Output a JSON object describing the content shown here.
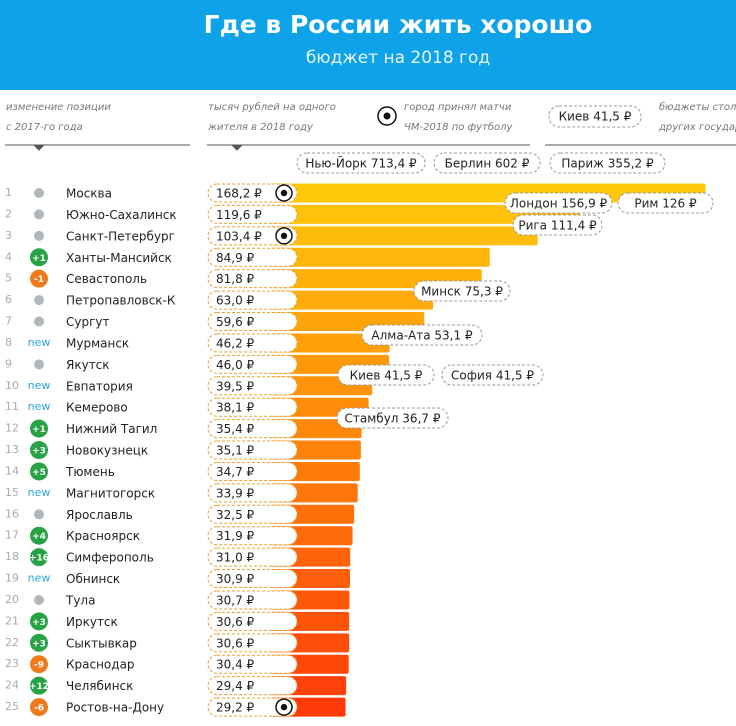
{
  "chart_data": {
    "type": "bar",
    "title": "Где в России жить хорошо",
    "subtitle": "бюджет на 2018 год",
    "column_notes": {
      "change": [
        "изменение позиции",
        "с 2017-го года"
      ],
      "value": [
        "тысяч рублей на одного",
        "жителя в 2018 году"
      ],
      "world_cup": [
        "город принял матчи",
        "ЧМ-2018 по футболу"
      ],
      "legend_example": "Киев 41,5 ₽",
      "capitals": [
        "бюджеты столиц",
        "других государств"
      ]
    },
    "ranks": [
      1,
      2,
      3,
      4,
      5,
      6,
      7,
      8,
      9,
      10,
      11,
      12,
      13,
      14,
      15,
      16,
      17,
      18,
      19,
      20,
      21,
      22,
      23,
      24,
      25
    ],
    "position_changes": [
      null,
      null,
      null,
      "+1",
      "-1",
      null,
      null,
      "new",
      null,
      "new",
      "new",
      "+1",
      "+3",
      "+5",
      "new",
      null,
      "+4",
      "+16",
      "new",
      null,
      "+3",
      "+3",
      "-9",
      "+12",
      "-6"
    ],
    "categories": [
      "Москва",
      "Южно-Сахалинск",
      "Санкт-Петербург",
      "Ханты-Мансийск",
      "Севастополь",
      "Петропавловск-К",
      "Сургут",
      "Мурманск",
      "Якутск",
      "Евпатория",
      "Кемерово",
      "Нижний Тагил",
      "Новокузнецк",
      "Тюмень",
      "Магнитогорск",
      "Ярославль",
      "Красноярск",
      "Симферополь",
      "Обнинск",
      "Тула",
      "Иркутск",
      "Сыктывкар",
      "Краснодар",
      "Челябинск",
      "Ростов-на-Дону"
    ],
    "values": [
      168.2,
      119.6,
      103.4,
      84.9,
      81.8,
      63.0,
      59.6,
      46.2,
      46.0,
      39.5,
      38.1,
      35.4,
      35.1,
      34.7,
      33.9,
      32.5,
      31.9,
      31.0,
      30.9,
      30.7,
      30.6,
      30.6,
      30.4,
      29.4,
      29.2
    ],
    "value_labels": [
      "168,2 ₽",
      "119,6 ₽",
      "103,4 ₽",
      "84,9 ₽",
      "81,8 ₽",
      "63,0 ₽",
      "59,6 ₽",
      "46,2 ₽",
      "46,0 ₽",
      "39,5 ₽",
      "38,1 ₽",
      "35,4 ₽",
      "35,1 ₽",
      "34,7 ₽",
      "33,9 ₽",
      "32,5 ₽",
      "31,9 ₽",
      "31,0 ₽",
      "30,9 ₽",
      "30,7 ₽",
      "30,6 ₽",
      "30,6 ₽",
      "30,4 ₽",
      "29,4 ₽",
      "29,2 ₽"
    ],
    "world_cup_host": [
      true,
      false,
      true,
      false,
      false,
      false,
      false,
      false,
      false,
      false,
      false,
      false,
      false,
      false,
      false,
      false,
      false,
      false,
      false,
      false,
      false,
      false,
      false,
      false,
      true
    ],
    "color_scale": [
      "#ffc80a",
      "#ff3b0a"
    ],
    "xlim": [
      0,
      180
    ],
    "references": [
      {
        "value": 713.4,
        "label": "Нью-Йорк 713,4 ₽"
      },
      {
        "value": 602,
        "label": "Берлин 602 ₽"
      },
      {
        "value": 355.2,
        "label": "Париж 355,2 ₽"
      },
      {
        "value": 156.9,
        "label": "Лондон 156,9 ₽"
      },
      {
        "value": 126,
        "label": "Рим 126 ₽"
      },
      {
        "value": 111.4,
        "label": "Рига 111,4 ₽"
      },
      {
        "value": 75.3,
        "label": "Минск 75,3 ₽"
      },
      {
        "value": 53.1,
        "label": "Алма-Ата 53,1 ₽"
      },
      {
        "value": 41.5,
        "label": "Киев 41,5 ₽"
      },
      {
        "value": 41.5,
        "label": "София 41,5 ₽"
      },
      {
        "value": 36.7,
        "label": "Стамбул 36,7 ₽"
      }
    ]
  }
}
